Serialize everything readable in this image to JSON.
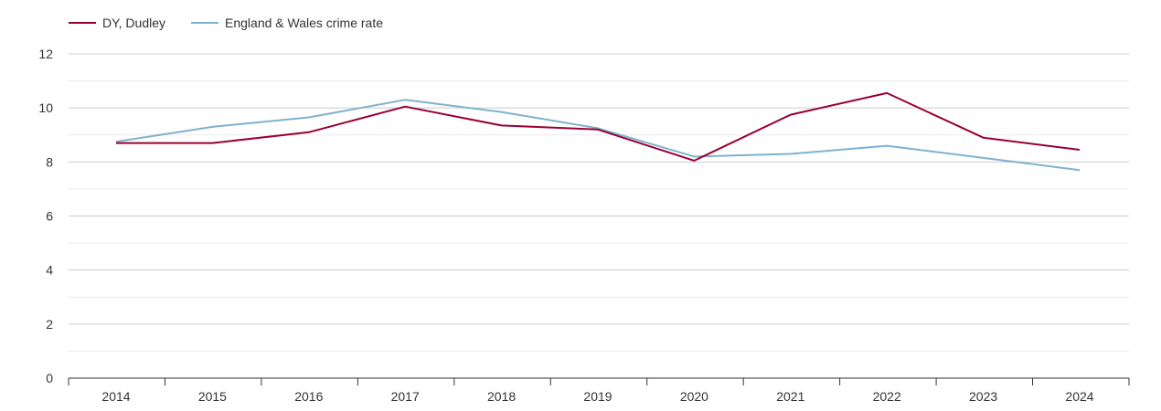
{
  "chart_data": {
    "type": "line",
    "title": "",
    "xlabel": "",
    "ylabel": "",
    "categories": [
      "2014",
      "2015",
      "2016",
      "2017",
      "2018",
      "2019",
      "2020",
      "2021",
      "2022",
      "2023",
      "2024"
    ],
    "ylim": [
      0,
      12
    ],
    "y_ticks": [
      0,
      2,
      4,
      6,
      8,
      10,
      12
    ],
    "y_tick_labels": [
      "0",
      "2",
      "4",
      "6",
      "8",
      "10",
      "12"
    ],
    "grid": true,
    "legend_position": "top-left",
    "series": [
      {
        "name": "DY, Dudley",
        "color": "#990033",
        "values": [
          8.7,
          8.7,
          9.1,
          10.05,
          9.35,
          9.2,
          8.05,
          9.75,
          10.55,
          8.9,
          8.45
        ]
      },
      {
        "name": "England & Wales crime rate",
        "color": "#7fb2d0",
        "values": [
          8.75,
          9.3,
          9.65,
          10.3,
          9.85,
          9.25,
          8.2,
          8.3,
          8.6,
          8.15,
          7.7
        ]
      }
    ]
  }
}
